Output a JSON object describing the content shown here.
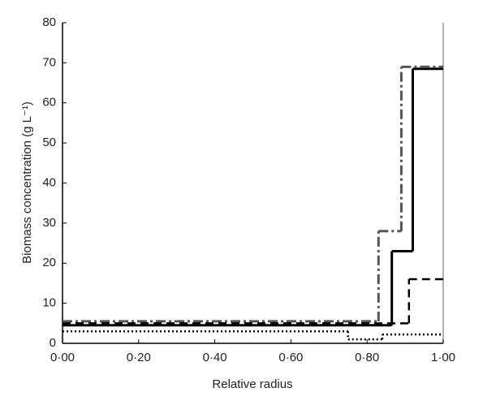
{
  "chart_data": {
    "type": "step",
    "xlabel": "Relative radius",
    "ylabel": "Biomass concentration (g L⁻¹)",
    "xlim": [
      0,
      1
    ],
    "ylim": [
      0,
      80
    ],
    "xticks": [
      {
        "value": 0,
        "label": "0·00"
      },
      {
        "value": 0.2,
        "label": "0·20"
      },
      {
        "value": 0.4,
        "label": "0·40"
      },
      {
        "value": 0.6,
        "label": "0·60"
      },
      {
        "value": 0.8,
        "label": "0·80"
      },
      {
        "value": 1,
        "label": "1·00"
      }
    ],
    "yticks": [
      0,
      10,
      20,
      30,
      40,
      50,
      60,
      70,
      80
    ],
    "series": [
      {
        "style": "solid",
        "color": "#000000",
        "x": [
          0,
          0.865,
          0.92
        ],
        "values": [
          4.5,
          23,
          68.5
        ]
      },
      {
        "style": "dashdot",
        "color": "#555555",
        "x": [
          0,
          0.83,
          0.89
        ],
        "values": [
          5.5,
          28,
          69
        ]
      },
      {
        "style": "dashed",
        "color": "#000000",
        "x": [
          0,
          0.91
        ],
        "values": [
          5,
          16
        ]
      },
      {
        "style": "dotted",
        "color": "#000000",
        "x": [
          0,
          0.75,
          0.84
        ],
        "values": [
          3,
          1,
          2.2
        ]
      }
    ]
  }
}
